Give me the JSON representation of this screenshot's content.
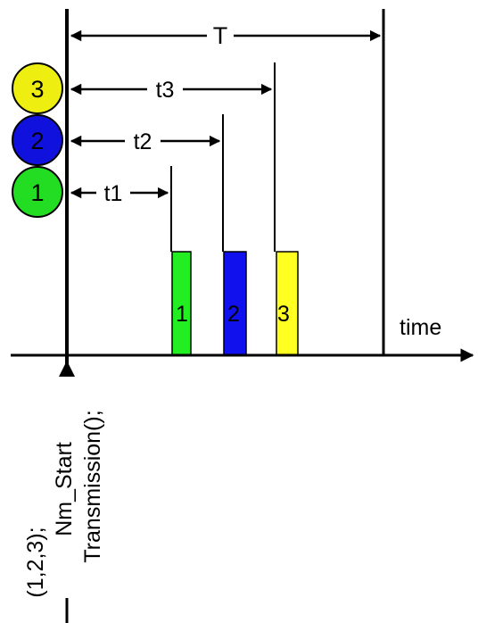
{
  "diagram": {
    "axis_label": "time",
    "period_label": "T",
    "intervals": [
      {
        "label": "t1"
      },
      {
        "label": "t2"
      },
      {
        "label": "t3"
      }
    ],
    "circles": [
      {
        "label": "1",
        "color": "#22dd22"
      },
      {
        "label": "2",
        "color": "#1111dd"
      },
      {
        "label": "3",
        "color": "#eeee11"
      }
    ],
    "bars": [
      {
        "label": "1",
        "color": "#22ee22"
      },
      {
        "label": "2",
        "color": "#1111ee"
      },
      {
        "label": "3",
        "color": "#ffff22"
      }
    ],
    "call_lines": [
      "(1,2,3);",
      "Nm_Start",
      "Transmission();"
    ]
  }
}
